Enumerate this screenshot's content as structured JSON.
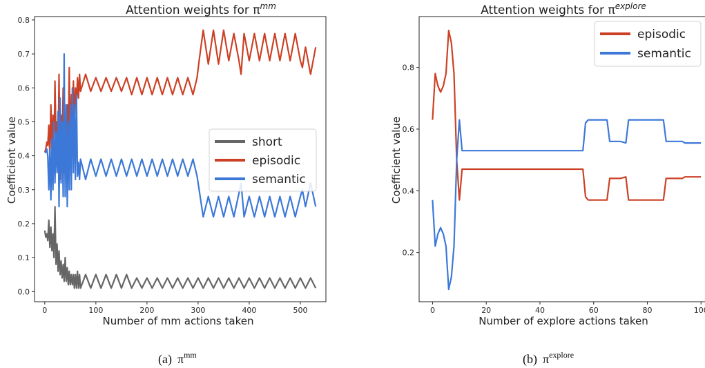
{
  "chart_data": [
    {
      "type": "line",
      "title": "Attention weights for π",
      "title_sup": "mm",
      "xlabel": "Number of mm actions taken",
      "ylabel": "Coefficient value",
      "xlim": [
        -20,
        550
      ],
      "ylim": [
        -0.03,
        0.81
      ],
      "xticks": [
        0,
        100,
        200,
        300,
        400,
        500
      ],
      "yticks": [
        0.0,
        0.1,
        0.2,
        0.3,
        0.4,
        0.5,
        0.6,
        0.7,
        0.8
      ],
      "xtick_labels": [
        "0",
        "100",
        "200",
        "300",
        "400",
        "500"
      ],
      "ytick_labels": [
        "0.0",
        "0.1",
        "0.2",
        "0.3",
        "0.4",
        "0.5",
        "0.6",
        "0.7",
        "0.8"
      ],
      "grid": false,
      "legend_position": "center-right",
      "series": [
        {
          "name": "short",
          "color": "#666666",
          "x": [
            0,
            2,
            4,
            6,
            8,
            10,
            12,
            14,
            16,
            18,
            20,
            22,
            24,
            26,
            28,
            30,
            32,
            34,
            36,
            38,
            40,
            42,
            44,
            46,
            48,
            50,
            52,
            54,
            56,
            58,
            60,
            62,
            64,
            66,
            68,
            70,
            80,
            90,
            100,
            110,
            120,
            130,
            140,
            150,
            160,
            170,
            180,
            190,
            200,
            210,
            220,
            230,
            240,
            250,
            260,
            270,
            280,
            290,
            300,
            310,
            320,
            330,
            340,
            350,
            360,
            370,
            380,
            390,
            400,
            410,
            420,
            430,
            440,
            450,
            460,
            470,
            480,
            490,
            500,
            510,
            520,
            530
          ],
          "y": [
            0.18,
            0.16,
            0.17,
            0.15,
            0.21,
            0.13,
            0.19,
            0.12,
            0.17,
            0.1,
            0.25,
            0.08,
            0.14,
            0.06,
            0.12,
            0.05,
            0.09,
            0.04,
            0.08,
            0.03,
            0.1,
            0.03,
            0.07,
            0.02,
            0.06,
            0.02,
            0.05,
            0.02,
            0.05,
            0.01,
            0.05,
            0.01,
            0.06,
            0.01,
            0.05,
            0.01,
            0.05,
            0.01,
            0.05,
            0.01,
            0.05,
            0.01,
            0.05,
            0.01,
            0.05,
            0.01,
            0.04,
            0.01,
            0.04,
            0.01,
            0.04,
            0.01,
            0.04,
            0.01,
            0.04,
            0.01,
            0.04,
            0.01,
            0.04,
            0.01,
            0.04,
            0.01,
            0.04,
            0.01,
            0.04,
            0.01,
            0.04,
            0.01,
            0.04,
            0.01,
            0.04,
            0.01,
            0.04,
            0.01,
            0.04,
            0.01,
            0.04,
            0.01,
            0.04,
            0.01,
            0.04,
            0.01
          ]
        },
        {
          "name": "episodic",
          "color": "#cc4125",
          "x": [
            0,
            2,
            4,
            6,
            8,
            10,
            12,
            14,
            16,
            18,
            20,
            22,
            24,
            26,
            28,
            30,
            32,
            34,
            36,
            38,
            40,
            42,
            44,
            46,
            48,
            50,
            52,
            54,
            56,
            58,
            60,
            62,
            64,
            66,
            68,
            70,
            80,
            90,
            100,
            110,
            120,
            130,
            140,
            150,
            160,
            170,
            180,
            190,
            200,
            210,
            220,
            230,
            240,
            250,
            260,
            270,
            280,
            290,
            298,
            302,
            310,
            320,
            330,
            340,
            350,
            360,
            370,
            380,
            384,
            390,
            400,
            410,
            420,
            430,
            440,
            450,
            460,
            470,
            480,
            490,
            500,
            504,
            510,
            520,
            530
          ],
          "y": [
            0.41,
            0.42,
            0.44,
            0.43,
            0.49,
            0.4,
            0.55,
            0.42,
            0.52,
            0.38,
            0.62,
            0.45,
            0.5,
            0.4,
            0.64,
            0.33,
            0.52,
            0.42,
            0.6,
            0.35,
            0.47,
            0.4,
            0.55,
            0.44,
            0.66,
            0.4,
            0.58,
            0.45,
            0.62,
            0.5,
            0.6,
            0.55,
            0.63,
            0.57,
            0.64,
            0.59,
            0.64,
            0.59,
            0.63,
            0.59,
            0.63,
            0.59,
            0.63,
            0.59,
            0.63,
            0.58,
            0.63,
            0.58,
            0.63,
            0.58,
            0.63,
            0.58,
            0.63,
            0.58,
            0.63,
            0.58,
            0.63,
            0.58,
            0.63,
            0.68,
            0.77,
            0.67,
            0.77,
            0.67,
            0.77,
            0.68,
            0.76,
            0.68,
            0.64,
            0.76,
            0.68,
            0.76,
            0.68,
            0.76,
            0.68,
            0.76,
            0.68,
            0.76,
            0.68,
            0.76,
            0.68,
            0.66,
            0.72,
            0.64,
            0.72
          ]
        },
        {
          "name": "semantic",
          "color": "#3c78d8",
          "x": [
            0,
            2,
            4,
            6,
            8,
            10,
            12,
            14,
            16,
            18,
            20,
            22,
            24,
            26,
            28,
            30,
            32,
            34,
            36,
            38,
            40,
            42,
            44,
            46,
            48,
            50,
            52,
            54,
            56,
            58,
            60,
            62,
            64,
            66,
            68,
            70,
            80,
            90,
            100,
            110,
            120,
            130,
            140,
            150,
            160,
            170,
            180,
            190,
            200,
            210,
            220,
            230,
            240,
            250,
            260,
            270,
            280,
            290,
            298,
            302,
            310,
            320,
            330,
            340,
            350,
            360,
            370,
            380,
            384,
            390,
            400,
            410,
            420,
            430,
            440,
            450,
            460,
            470,
            480,
            490,
            500,
            504,
            510,
            520,
            530
          ],
          "y": [
            0.41,
            0.41,
            0.42,
            0.4,
            0.3,
            0.42,
            0.27,
            0.45,
            0.3,
            0.5,
            0.32,
            0.47,
            0.35,
            0.53,
            0.25,
            0.57,
            0.32,
            0.5,
            0.28,
            0.7,
            0.28,
            0.55,
            0.25,
            0.5,
            0.3,
            0.55,
            0.3,
            0.6,
            0.35,
            0.55,
            0.33,
            0.58,
            0.34,
            0.38,
            0.33,
            0.39,
            0.33,
            0.39,
            0.34,
            0.39,
            0.34,
            0.39,
            0.34,
            0.39,
            0.34,
            0.39,
            0.34,
            0.39,
            0.34,
            0.39,
            0.34,
            0.39,
            0.34,
            0.39,
            0.34,
            0.39,
            0.34,
            0.39,
            0.34,
            0.3,
            0.22,
            0.28,
            0.22,
            0.28,
            0.22,
            0.28,
            0.22,
            0.29,
            0.32,
            0.22,
            0.28,
            0.22,
            0.28,
            0.22,
            0.28,
            0.22,
            0.28,
            0.22,
            0.28,
            0.22,
            0.28,
            0.3,
            0.25,
            0.32,
            0.25
          ]
        }
      ]
    },
    {
      "type": "line",
      "title": "Attention weights for π",
      "title_sup": "explore",
      "xlabel": "Number of explore actions taken",
      "ylabel": "Coefficient value",
      "xlim": [
        -5,
        102
      ],
      "ylim": [
        0.04,
        0.965
      ],
      "xticks": [
        0,
        20,
        40,
        60,
        80,
        100
      ],
      "yticks": [
        0.2,
        0.4,
        0.6,
        0.8
      ],
      "xtick_labels": [
        "0",
        "20",
        "40",
        "60",
        "80",
        "100"
      ],
      "ytick_labels": [
        "0.2",
        "0.4",
        "0.6",
        "0.8"
      ],
      "grid": false,
      "legend_position": "top-right",
      "series": [
        {
          "name": "episodic",
          "color": "#cc4125",
          "x": [
            0,
            1,
            2,
            3,
            4,
            5,
            6,
            7,
            8,
            9,
            10,
            11,
            12,
            20,
            30,
            40,
            50,
            56,
            57,
            58,
            60,
            65,
            66,
            70,
            72,
            73,
            80,
            86,
            87,
            90,
            93,
            94,
            100
          ],
          "y": [
            0.63,
            0.78,
            0.74,
            0.72,
            0.74,
            0.78,
            0.92,
            0.88,
            0.78,
            0.5,
            0.37,
            0.47,
            0.47,
            0.47,
            0.47,
            0.47,
            0.47,
            0.47,
            0.38,
            0.37,
            0.37,
            0.37,
            0.44,
            0.44,
            0.445,
            0.37,
            0.37,
            0.37,
            0.44,
            0.44,
            0.44,
            0.445,
            0.445
          ]
        },
        {
          "name": "semantic",
          "color": "#3c78d8",
          "x": [
            0,
            1,
            2,
            3,
            4,
            5,
            6,
            7,
            8,
            9,
            10,
            11,
            12,
            20,
            30,
            40,
            50,
            56,
            57,
            58,
            60,
            65,
            66,
            70,
            72,
            73,
            80,
            86,
            87,
            90,
            93,
            94,
            100
          ],
          "y": [
            0.37,
            0.22,
            0.26,
            0.28,
            0.26,
            0.22,
            0.08,
            0.12,
            0.22,
            0.5,
            0.63,
            0.53,
            0.53,
            0.53,
            0.53,
            0.53,
            0.53,
            0.53,
            0.62,
            0.63,
            0.63,
            0.63,
            0.56,
            0.56,
            0.555,
            0.63,
            0.63,
            0.63,
            0.56,
            0.56,
            0.56,
            0.555,
            0.555
          ]
        }
      ]
    }
  ],
  "captions": [
    {
      "label": "(a)",
      "symbol": "π",
      "sup": "mm"
    },
    {
      "label": "(b)",
      "symbol": "π",
      "sup": "explore"
    }
  ]
}
